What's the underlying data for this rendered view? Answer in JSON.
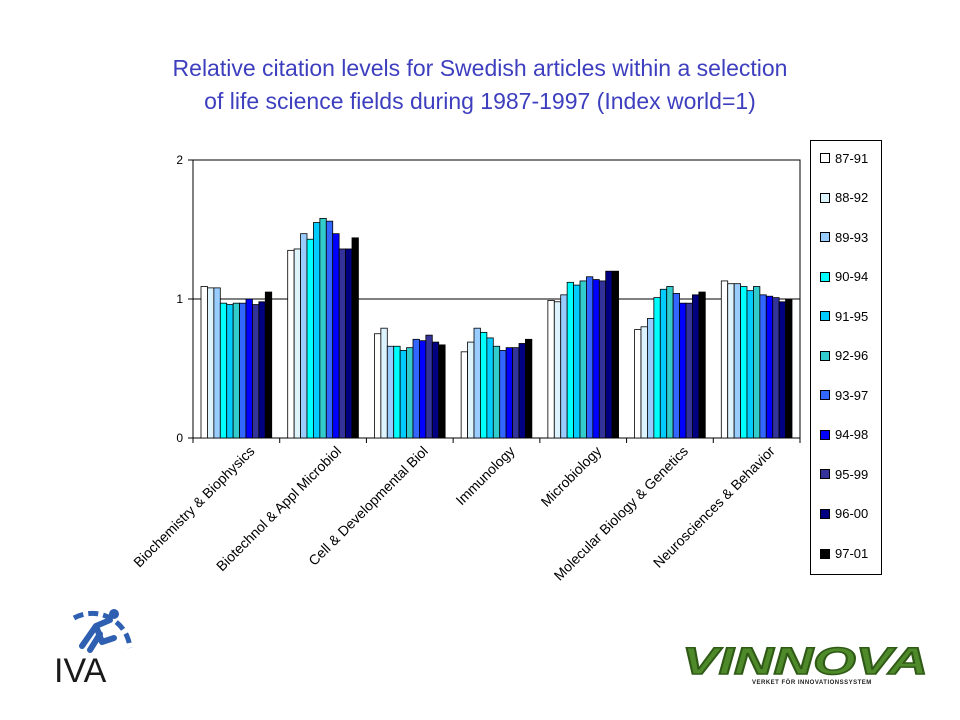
{
  "title_line1": "Relative citation levels for Swedish articles within a selection",
  "title_line2": "of life science fields during 1987-1997 (Index world=1)",
  "logos": {
    "iva_text": "IVA",
    "vinnova_text": "VINNOVA",
    "vinnova_sub": "VERKET FÖR INNOVATIONSSYSTEM"
  },
  "chart_data": {
    "type": "bar",
    "title": "Relative citation levels for Swedish articles within a selection of life science fields during 1987-1997 (Index world=1)",
    "xlabel": "",
    "ylabel": "",
    "ylim": [
      0,
      2
    ],
    "yticks": [
      "0",
      "1",
      "2"
    ],
    "grid": "horizontal major gridlines",
    "legend": "right",
    "categories": [
      "Biochemistry & Biophysics",
      "Biotechnol & Appl Microbiol",
      "Cell & Developmental Biol",
      "Immunology",
      "Microbiology",
      "Molecular Biology & Genetics",
      "Neurosciences & Behavior"
    ],
    "series": [
      {
        "name": "87-91",
        "color": "#ffffff",
        "values": [
          1.09,
          1.35,
          0.75,
          0.62,
          0.99,
          0.78,
          1.13
        ]
      },
      {
        "name": "88-92",
        "color": "#ddf4ff",
        "values": [
          1.08,
          1.36,
          0.79,
          0.69,
          0.98,
          0.8,
          1.11
        ]
      },
      {
        "name": "89-93",
        "color": "#99ccff",
        "values": [
          1.08,
          1.47,
          0.66,
          0.79,
          1.03,
          0.86,
          1.11
        ]
      },
      {
        "name": "90-94",
        "color": "#00ffff",
        "values": [
          0.97,
          1.43,
          0.66,
          0.76,
          1.12,
          1.01,
          1.09
        ]
      },
      {
        "name": "91-95",
        "color": "#00ccff",
        "values": [
          0.96,
          1.55,
          0.63,
          0.72,
          1.1,
          1.07,
          1.06
        ]
      },
      {
        "name": "92-96",
        "color": "#33cccc",
        "values": [
          0.97,
          1.58,
          0.65,
          0.66,
          1.13,
          1.09,
          1.09
        ]
      },
      {
        "name": "93-97",
        "color": "#3366ff",
        "values": [
          0.97,
          1.56,
          0.71,
          0.63,
          1.16,
          1.04,
          1.03
        ]
      },
      {
        "name": "94-98",
        "color": "#0000ff",
        "values": [
          1.0,
          1.47,
          0.7,
          0.65,
          1.14,
          0.97,
          1.02
        ]
      },
      {
        "name": "95-99",
        "color": "#333399",
        "values": [
          0.96,
          1.36,
          0.74,
          0.65,
          1.13,
          0.97,
          1.01
        ]
      },
      {
        "name": "96-00",
        "color": "#000080",
        "values": [
          0.98,
          1.36,
          0.69,
          0.68,
          1.2,
          1.03,
          0.98
        ]
      },
      {
        "name": "97-01",
        "color": "#000000",
        "values": [
          1.05,
          1.44,
          0.67,
          0.71,
          1.2,
          1.05,
          1.0
        ]
      }
    ]
  }
}
